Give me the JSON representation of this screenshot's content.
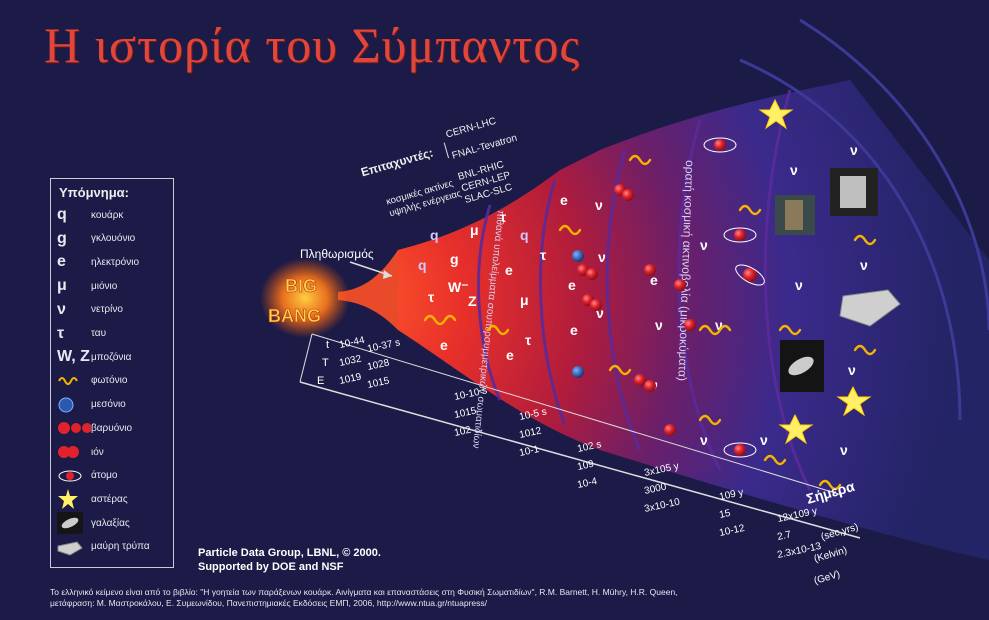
{
  "title": "Η ιστορία του Σύμπαντος",
  "accelerators": {
    "heading": "Επιταχυντές:",
    "lhc": "CERN-LHC",
    "tevatron": "FNAL-Tevatron",
    "rhic": "BNL-RHIC",
    "lep": "CERN-LEP",
    "slc": "SLAC-SLC",
    "cosmic_line1": "κοσμικές ακτίνες",
    "cosmic_line2": "υψηλής ενέργειας"
  },
  "inflation_label": "Πληθωρισμός",
  "big_bang": {
    "line1": "BIG",
    "line2": "BANG"
  },
  "axis": {
    "t_label": "t",
    "T_label": "T",
    "E_label": "E",
    "t_values": [
      "10-44",
      "10-37 s",
      "10-10 s",
      "10-5 s",
      "102 s",
      "3x105 y",
      "109 y",
      "12x109 y"
    ],
    "T_values": [
      "1032",
      "1028",
      "1015",
      "1012",
      "109",
      "3000",
      "15",
      "2.7"
    ],
    "E_values": [
      "1019",
      "1015",
      "102",
      "10-1",
      "10-4",
      "3x10-10",
      "10-12",
      "2.3x10-13"
    ],
    "units_time": "(sec,yrs)",
    "units_temp": "(Kelvin)",
    "units_energy": "(GeV)"
  },
  "today_label": "Σήμερα",
  "band_labels": {
    "quarks": "πιθανά υπολείμματα σουπερσυμμετρικών σωματιδίων",
    "cmb": "ορατή κοσμική ακτινοβολία (μικροκύματα)"
  },
  "legend": {
    "title": "Υπόμνημα:",
    "items": [
      {
        "symbol": "q",
        "label": "κουάρκ"
      },
      {
        "symbol": "g",
        "label": "γκλουόνιο"
      },
      {
        "symbol": "e",
        "label": "ηλεκτρόνιο"
      },
      {
        "symbol": "μ",
        "label": "μιόνιο"
      },
      {
        "symbol": "ν",
        "label": "νετρίνο"
      },
      {
        "symbol": "τ",
        "label": "ταυ"
      },
      {
        "symbol": "W, Z",
        "label": "μποζόνια"
      },
      {
        "symbol": "",
        "icon": "photon-wave-icon",
        "label": "φωτόνιο"
      },
      {
        "symbol": "",
        "icon": "meson-icon",
        "label": "μεσόνιο"
      },
      {
        "symbol": "",
        "icon": "baryon-icon",
        "label": "βαρυόνιο"
      },
      {
        "symbol": "",
        "icon": "ion-icon",
        "label": "ιόν"
      },
      {
        "symbol": "",
        "icon": "atom-icon",
        "label": "άτομο"
      },
      {
        "symbol": "",
        "icon": "star-icon",
        "label": "αστέρας"
      },
      {
        "symbol": "",
        "icon": "galaxy-icon",
        "label": "γαλαξίας"
      },
      {
        "symbol": "",
        "icon": "black-hole-icon",
        "label": "μαύρη τρύπα"
      }
    ]
  },
  "credit": {
    "line1": "Particle Data Group, LBNL,  ©  2000.",
    "line2": "Supported by DOE and NSF"
  },
  "footer": {
    "line1": "Το ελληνικό κείμενο είναι από το βιβλίο: \"Η γοητεία των παράξενων κουάρκ. Αινίγματα και επαναστάσεις στη Φυσική Σωματιδίων\", R.M. Barnett, H. Mühry, H.R. Queen,",
    "line2": "μετάφραση: Μ. Μαστροκάλου, Ε. Συμεωνίδου, Πανεπιστημιακές Εκδόσεις ΕΜΠ, 2006, http://www.ntua.gr/ntuapress/"
  },
  "colors": {
    "background": "#1c1b47",
    "title": "#e0473a",
    "cone_hot": "#e8302a",
    "cone_mid": "#9b1c3a",
    "cone_cool": "#3b2a8c",
    "photon": "#f5b400",
    "particle_red": "#e0222c"
  }
}
